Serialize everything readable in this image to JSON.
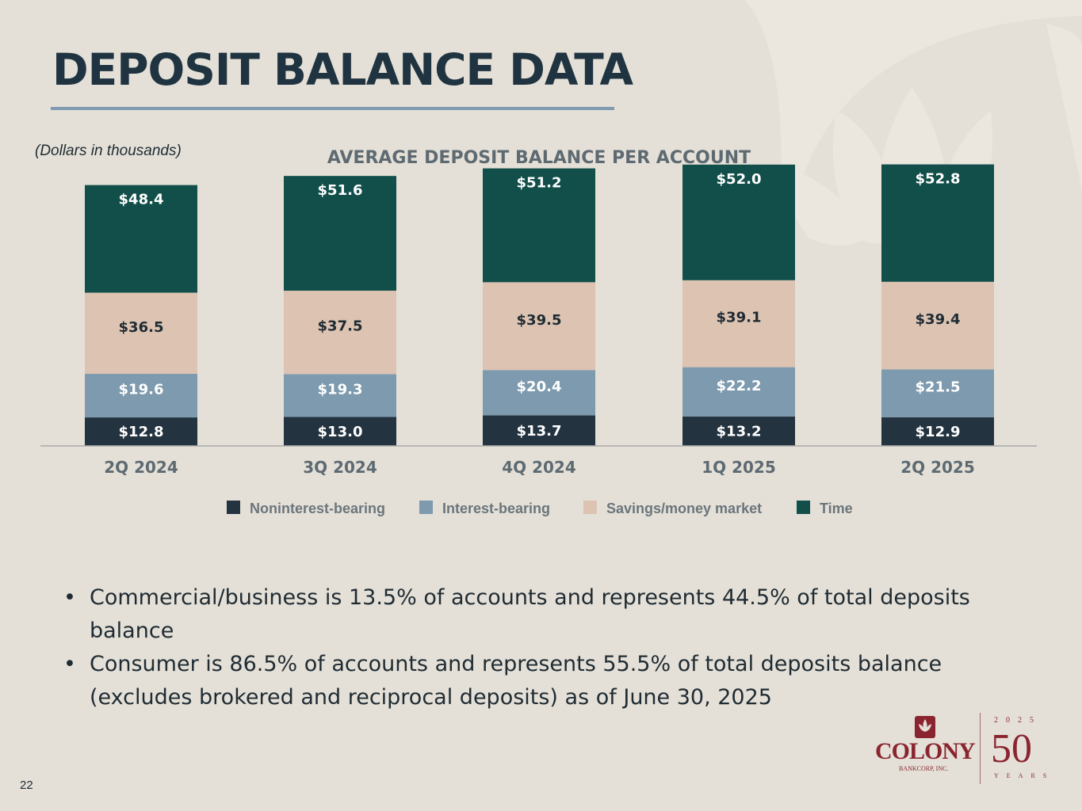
{
  "page": {
    "title": "DEPOSIT BALANCE DATA",
    "units_note": "(Dollars in thousands)",
    "page_number": "22"
  },
  "bullets": [
    "Commercial/business is 13.5% of accounts and represents 44.5% of total deposits balance",
    "Consumer is 86.5% of accounts and represents 55.5% of total deposits balance (excludes brokered and reciprocal deposits) as of June 30, 2025"
  ],
  "logo": {
    "name": "COLONY",
    "sub": "BANKCORP, INC.",
    "year": "2025",
    "fifty": "50",
    "years_word": "YEARS"
  },
  "colors": {
    "title": "#1f3341",
    "noninterest": "#243340",
    "interest": "#7e9aae",
    "savings": "#dcc3b2",
    "time": "#124f4b",
    "brand": "#8a2530"
  },
  "chart_data": {
    "type": "bar",
    "stacked": true,
    "title": "AVERAGE DEPOSIT BALANCE PER ACCOUNT",
    "categories": [
      "2Q 2024",
      "3Q 2024",
      "4Q 2024",
      "1Q 2025",
      "2Q 2025"
    ],
    "series": [
      {
        "name": "Noninterest-bearing",
        "color": "#243340",
        "values": [
          12.8,
          13.0,
          13.7,
          13.2,
          12.9
        ],
        "labels": [
          "$12.8",
          "$13.0",
          "$13.7",
          "$13.2",
          "$12.9"
        ]
      },
      {
        "name": "Interest-bearing",
        "color": "#7e9aae",
        "values": [
          19.6,
          19.3,
          20.4,
          22.2,
          21.5
        ],
        "labels": [
          "$19.6",
          "$19.3",
          "$20.4",
          "$22.2",
          "$21.5"
        ]
      },
      {
        "name": "Savings/money market",
        "color": "#dcc3b2",
        "values": [
          36.5,
          37.5,
          39.5,
          39.1,
          39.4
        ],
        "labels": [
          "$36.5",
          "$37.5",
          "$39.5",
          "$39.1",
          "$39.4"
        ]
      },
      {
        "name": "Time",
        "color": "#124f4b",
        "values": [
          48.4,
          51.6,
          51.2,
          52.0,
          52.8
        ],
        "labels": [
          "$48.4",
          "$51.6",
          "$51.2",
          "$52.0",
          "$52.8"
        ]
      }
    ],
    "ylim": [
      0,
      130
    ],
    "legend_position": "bottom",
    "grid": false
  }
}
